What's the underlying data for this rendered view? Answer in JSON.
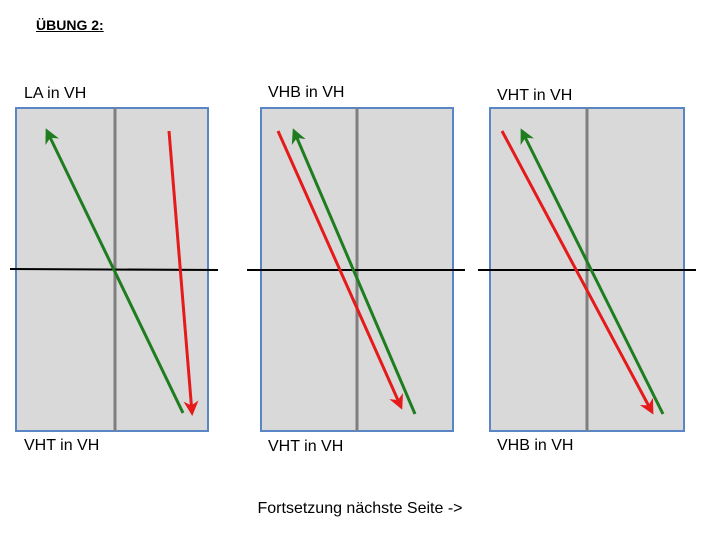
{
  "title": "ÜBUNG 2:",
  "panels": [
    {
      "top_label": "LA in VH",
      "bottom_label": "VHT in VH"
    },
    {
      "top_label": "VHB in VH",
      "bottom_label": "VHT in VH"
    },
    {
      "top_label": "VHT in VH",
      "bottom_label": "VHB in VH"
    }
  ],
  "footer": "Fortsetzung nächste Seite ->",
  "colors": {
    "panel_fill": "#d9d9d9",
    "panel_border": "#5b86c5",
    "divider": "#7f7f7f",
    "horizontal_line": "#000000",
    "green_arrow": "#1e7d1e",
    "red_arrow": "#e51a1a"
  }
}
